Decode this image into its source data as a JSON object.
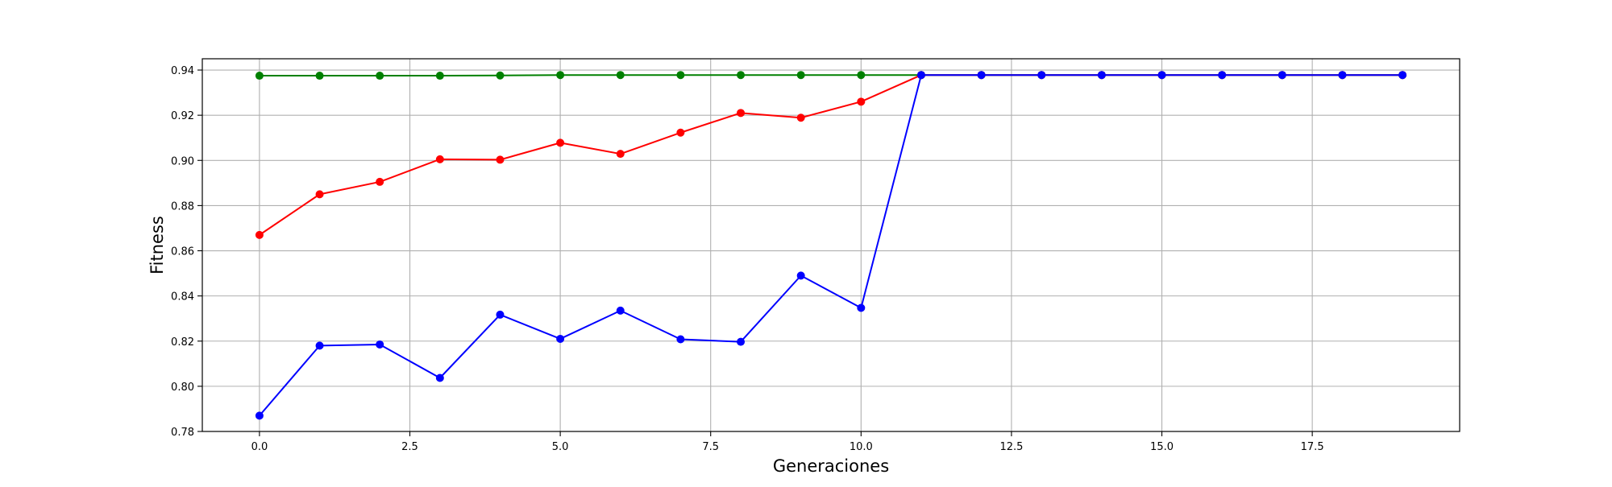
{
  "chart_data": {
    "type": "line",
    "title": "",
    "xlabel": "Generaciones",
    "ylabel": "Fitness",
    "xlim": [
      -0.95,
      19.95
    ],
    "ylim": [
      0.78,
      0.945
    ],
    "x_ticks": [
      0.0,
      2.5,
      5.0,
      7.5,
      10.0,
      12.5,
      15.0,
      17.5
    ],
    "x_tick_labels": [
      "0.0",
      "2.5",
      "5.0",
      "7.5",
      "10.0",
      "12.5",
      "15.0",
      "17.5"
    ],
    "y_ticks": [
      0.78,
      0.8,
      0.82,
      0.84,
      0.86,
      0.88,
      0.9,
      0.92,
      0.94
    ],
    "y_tick_labels": [
      "0.78",
      "0.80",
      "0.82",
      "0.84",
      "0.86",
      "0.88",
      "0.90",
      "0.92",
      "0.94"
    ],
    "grid": true,
    "x": [
      0,
      1,
      2,
      3,
      4,
      5,
      6,
      7,
      8,
      9,
      10,
      11,
      12,
      13,
      14,
      15,
      16,
      17,
      18,
      19
    ],
    "series": [
      {
        "color": "#008000",
        "marker": "circle",
        "values": [
          0.9375,
          0.9375,
          0.9375,
          0.9375,
          0.9376,
          0.9378,
          0.9378,
          0.9378,
          0.9378,
          0.9378,
          0.9378,
          0.9378,
          0.9378,
          0.9378,
          0.9378,
          0.9378,
          0.9378,
          0.9378,
          0.9378,
          0.9378
        ]
      },
      {
        "color": "#ff0000",
        "marker": "circle",
        "values": [
          0.867,
          0.885,
          0.8905,
          0.9005,
          0.9003,
          0.9078,
          0.9029,
          0.9123,
          0.921,
          0.9189,
          0.926,
          0.9378,
          0.9378,
          0.9378,
          0.9378,
          0.9378,
          0.9378,
          0.9378,
          0.9378,
          0.9378
        ]
      },
      {
        "color": "#0000ff",
        "marker": "circle",
        "values": [
          0.787,
          0.818,
          0.8185,
          0.8037,
          0.8317,
          0.821,
          0.8335,
          0.8208,
          0.8197,
          0.849,
          0.8347,
          0.9378,
          0.9378,
          0.9378,
          0.9378,
          0.9378,
          0.9378,
          0.9378,
          0.9378,
          0.9378
        ]
      }
    ]
  }
}
